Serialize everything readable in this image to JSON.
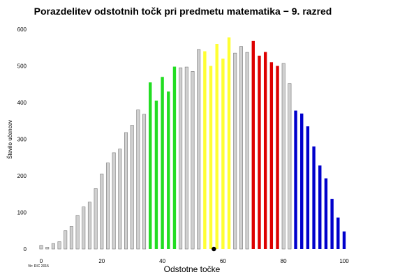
{
  "chart_data": {
    "type": "bar",
    "title": "Porazdelitev  odstotnih točk pri predmetu matematika − 9. razred",
    "xlabel": "Odstotne točke",
    "ylabel": "Število učencev",
    "source": "Vir: RIC 2015",
    "xlim": [
      0,
      100
    ],
    "ylim": [
      0,
      600
    ],
    "xticks": [
      "0",
      "20",
      "40",
      "60",
      "80",
      "100"
    ],
    "yticks": [
      "0",
      "100",
      "200",
      "300",
      "400",
      "500",
      "600"
    ],
    "grid": false,
    "mean_marker_x": 57,
    "colors": {
      "gray": "#d0d0d0",
      "green": "#22dd22",
      "yellow": "#ffff33",
      "red": "#dd0000",
      "blue": "#0000cc",
      "outline": "#777777",
      "marker": "#000000"
    },
    "bars": [
      {
        "x": 0,
        "value": 10,
        "color": "gray"
      },
      {
        "x": 2,
        "value": 5,
        "color": "gray"
      },
      {
        "x": 4,
        "value": 15,
        "color": "gray"
      },
      {
        "x": 6,
        "value": 20,
        "color": "gray"
      },
      {
        "x": 8,
        "value": 50,
        "color": "gray"
      },
      {
        "x": 10,
        "value": 62,
        "color": "gray"
      },
      {
        "x": 12,
        "value": 92,
        "color": "gray"
      },
      {
        "x": 14,
        "value": 115,
        "color": "gray"
      },
      {
        "x": 16,
        "value": 128,
        "color": "gray"
      },
      {
        "x": 18,
        "value": 165,
        "color": "gray"
      },
      {
        "x": 20,
        "value": 205,
        "color": "gray"
      },
      {
        "x": 22,
        "value": 235,
        "color": "gray"
      },
      {
        "x": 24,
        "value": 263,
        "color": "gray"
      },
      {
        "x": 26,
        "value": 273,
        "color": "gray"
      },
      {
        "x": 28,
        "value": 318,
        "color": "gray"
      },
      {
        "x": 30,
        "value": 338,
        "color": "gray"
      },
      {
        "x": 32,
        "value": 380,
        "color": "gray"
      },
      {
        "x": 34,
        "value": 368,
        "color": "gray"
      },
      {
        "x": 36,
        "value": 455,
        "color": "green"
      },
      {
        "x": 38,
        "value": 405,
        "color": "green"
      },
      {
        "x": 40,
        "value": 470,
        "color": "green"
      },
      {
        "x": 42,
        "value": 430,
        "color": "green"
      },
      {
        "x": 44,
        "value": 498,
        "color": "green"
      },
      {
        "x": 46,
        "value": 495,
        "color": "gray"
      },
      {
        "x": 48,
        "value": 497,
        "color": "gray"
      },
      {
        "x": 50,
        "value": 485,
        "color": "gray"
      },
      {
        "x": 52,
        "value": 545,
        "color": "gray"
      },
      {
        "x": 54,
        "value": 540,
        "color": "yellow"
      },
      {
        "x": 56,
        "value": 500,
        "color": "yellow"
      },
      {
        "x": 58,
        "value": 560,
        "color": "yellow"
      },
      {
        "x": 60,
        "value": 520,
        "color": "yellow"
      },
      {
        "x": 62,
        "value": 578,
        "color": "yellow"
      },
      {
        "x": 64,
        "value": 535,
        "color": "gray"
      },
      {
        "x": 66,
        "value": 553,
        "color": "gray"
      },
      {
        "x": 68,
        "value": 537,
        "color": "gray"
      },
      {
        "x": 70,
        "value": 568,
        "color": "red"
      },
      {
        "x": 72,
        "value": 528,
        "color": "red"
      },
      {
        "x": 74,
        "value": 538,
        "color": "red"
      },
      {
        "x": 76,
        "value": 510,
        "color": "red"
      },
      {
        "x": 78,
        "value": 500,
        "color": "red"
      },
      {
        "x": 80,
        "value": 507,
        "color": "gray"
      },
      {
        "x": 82,
        "value": 452,
        "color": "gray"
      },
      {
        "x": 84,
        "value": 378,
        "color": "blue"
      },
      {
        "x": 86,
        "value": 370,
        "color": "blue"
      },
      {
        "x": 88,
        "value": 335,
        "color": "blue"
      },
      {
        "x": 90,
        "value": 280,
        "color": "blue"
      },
      {
        "x": 92,
        "value": 228,
        "color": "blue"
      },
      {
        "x": 94,
        "value": 193,
        "color": "blue"
      },
      {
        "x": 96,
        "value": 137,
        "color": "blue"
      },
      {
        "x": 98,
        "value": 86,
        "color": "blue"
      },
      {
        "x": 100,
        "value": 48,
        "color": "blue"
      }
    ]
  }
}
